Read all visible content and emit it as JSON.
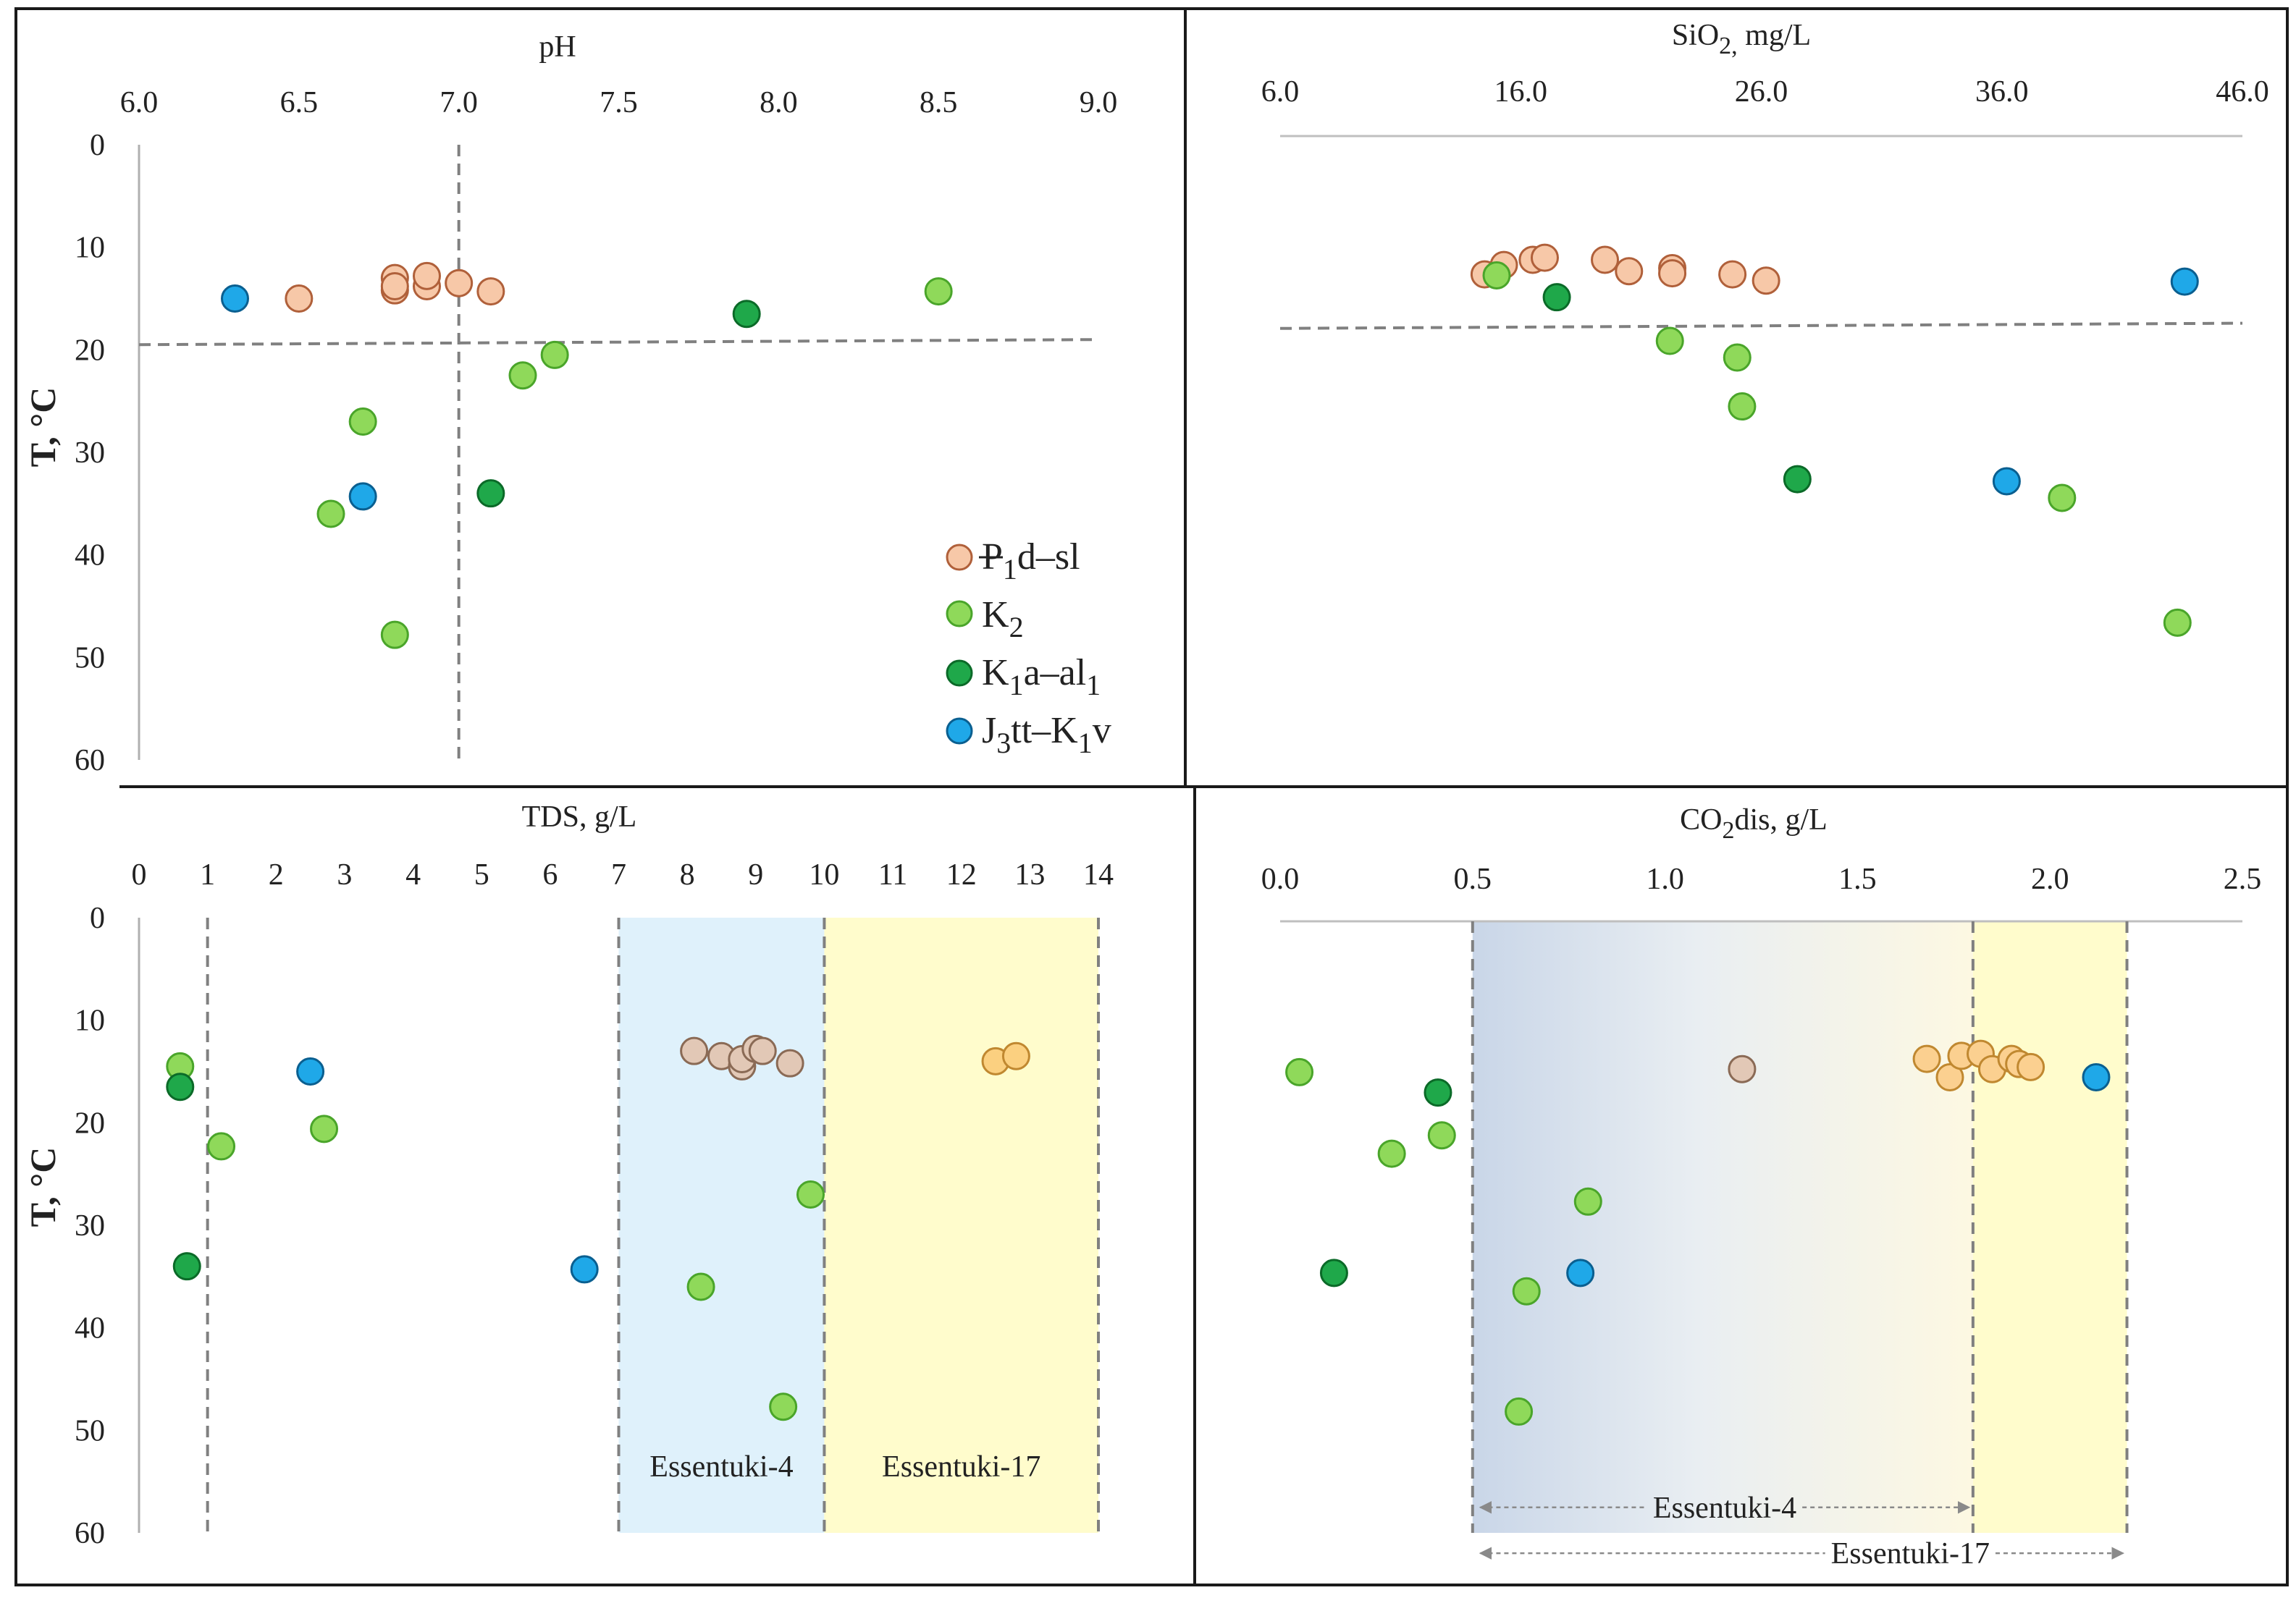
{
  "colors": {
    "Pd_sl": "#f7c8a8",
    "Pd_sl_stroke": "#b0603a",
    "K2": "#8fd95a",
    "K2_stroke": "#4aa52a",
    "K1a_al1": "#1fa84a",
    "K1a_al1_stroke": "#0b6a28",
    "J3tt_K1v": "#1fa8e8",
    "J3tt_K1v_stroke": "#0a5f90",
    "guide": "#808080",
    "region_blue": "#dff1fb",
    "region_yellow": "#fffccc",
    "axis_line": "#bfbfbf"
  },
  "legend": [
    {
      "series": "Pd_sl",
      "base": "P",
      "sub1": "1",
      "rest": "d–sl",
      "sub2": ""
    },
    {
      "series": "K2",
      "base": "K",
      "sub1": "2",
      "rest": "",
      "sub2": ""
    },
    {
      "series": "K1a_al1",
      "base": "K",
      "sub1": "1",
      "rest": "a–al",
      "sub2": "1"
    },
    {
      "series": "J3tt_K1v",
      "base": "J",
      "sub1": "3",
      "rest": "tt–K",
      "sub2": "1",
      "tail": "v"
    }
  ],
  "chart_data": [
    {
      "id": "ph",
      "type": "scatter",
      "title": "pH",
      "title_parts": {
        "base": "pH",
        "sub": "",
        "rest": ""
      },
      "xlabel": "pH",
      "ylabel": "T, °C",
      "xlim": [
        6.0,
        9.0
      ],
      "ylim": [
        0,
        60
      ],
      "y_inverted": true,
      "x_axis_position": "top",
      "xticks": [
        6.0,
        6.5,
        7.0,
        7.5,
        8.0,
        8.5,
        9.0
      ],
      "xtick_labels": [
        "6.0",
        "6.5",
        "7.0",
        "7.5",
        "8.0",
        "8.5",
        "9.0"
      ],
      "yticks": [
        0,
        10,
        20,
        30,
        40,
        50,
        60
      ],
      "ytick_labels": [
        "0",
        "10",
        "20",
        "30",
        "40",
        "50",
        "60"
      ],
      "show_y_labels": true,
      "guides": [
        {
          "kind": "vertical",
          "x": 7.0
        },
        {
          "kind": "sloped",
          "x1": 6.0,
          "y1": 19.5,
          "x2": 9.0,
          "y2": 19.0
        }
      ],
      "regions": [],
      "arrows": [],
      "series": [
        {
          "name": "Pd_sl",
          "points": [
            [
              6.5,
              15.0
            ],
            [
              6.8,
              13.0
            ],
            [
              6.8,
              14.2
            ],
            [
              6.8,
              13.8
            ],
            [
              6.9,
              13.8
            ],
            [
              6.9,
              12.8
            ],
            [
              7.0,
              13.5
            ],
            [
              7.1,
              14.3
            ]
          ]
        },
        {
          "name": "K2",
          "points": [
            [
              8.5,
              14.3
            ],
            [
              7.3,
              20.5
            ],
            [
              7.2,
              22.5
            ],
            [
              6.7,
              27.0
            ],
            [
              6.6,
              36.0
            ],
            [
              6.8,
              47.8
            ]
          ]
        },
        {
          "name": "K1a_al1",
          "points": [
            [
              7.9,
              16.5
            ],
            [
              7.1,
              34.0
            ]
          ]
        },
        {
          "name": "J3tt_K1v",
          "points": [
            [
              6.3,
              15.0
            ],
            [
              6.7,
              34.3
            ]
          ]
        }
      ]
    },
    {
      "id": "sio2",
      "type": "scatter",
      "title": "SiO2, mg/L",
      "title_parts": {
        "base": "SiO",
        "sub": "2,",
        "rest": " mg/L"
      },
      "xlabel": "SiO2, mg/L",
      "ylabel": "T, °C",
      "xlim": [
        6.0,
        46.0
      ],
      "ylim": [
        0,
        60
      ],
      "y_inverted": true,
      "x_axis_position": "top",
      "xticks": [
        6.0,
        16.0,
        26.0,
        36.0,
        46.0
      ],
      "xtick_labels": [
        "6.0",
        "16.0",
        "26.0",
        "36.0",
        "46.0"
      ],
      "yticks": [],
      "ytick_labels": [],
      "show_y_labels": false,
      "guides": [
        {
          "kind": "sloped",
          "x1": 6.0,
          "y1": 18.5,
          "x2": 46.0,
          "y2": 18.0
        }
      ],
      "regions": [],
      "arrows": [],
      "series": [
        {
          "name": "Pd_sl",
          "points": [
            [
              14.5,
              13.3
            ],
            [
              15.3,
              12.4
            ],
            [
              16.5,
              11.9
            ],
            [
              17.0,
              11.7
            ],
            [
              19.5,
              11.9
            ],
            [
              20.5,
              13.0
            ],
            [
              22.3,
              12.7
            ],
            [
              22.3,
              13.2
            ],
            [
              24.8,
              13.3
            ],
            [
              26.2,
              13.9
            ]
          ]
        },
        {
          "name": "K2",
          "points": [
            [
              15.0,
              13.4
            ],
            [
              22.2,
              19.7
            ],
            [
              25.0,
              21.3
            ],
            [
              25.2,
              26.0
            ],
            [
              38.5,
              34.8
            ],
            [
              43.3,
              46.8
            ]
          ]
        },
        {
          "name": "K1a_al1",
          "points": [
            [
              17.5,
              15.5
            ],
            [
              27.5,
              33.0
            ]
          ]
        },
        {
          "name": "J3tt_K1v",
          "points": [
            [
              43.6,
              14.0
            ],
            [
              36.2,
              33.2
            ]
          ]
        }
      ]
    },
    {
      "id": "tds",
      "type": "scatter",
      "title": "TDS, g/L",
      "title_parts": {
        "base": "TDS, g/L",
        "sub": "",
        "rest": ""
      },
      "xlabel": "TDS, g/L",
      "ylabel": "T, °C",
      "xlim": [
        0,
        14
      ],
      "ylim": [
        0,
        60
      ],
      "y_inverted": true,
      "x_axis_position": "top",
      "xticks": [
        0,
        1,
        2,
        3,
        4,
        5,
        6,
        7,
        8,
        9,
        10,
        11,
        12,
        13,
        14
      ],
      "xtick_labels": [
        "0",
        "1",
        "2",
        "3",
        "4",
        "5",
        "6",
        "7",
        "8",
        "9",
        "10",
        "11",
        "12",
        "13",
        "14"
      ],
      "yticks": [
        0,
        10,
        20,
        30,
        40,
        50,
        60
      ],
      "ytick_labels": [
        "0",
        "10",
        "20",
        "30",
        "40",
        "50",
        "60"
      ],
      "show_y_labels": true,
      "guides": [
        {
          "kind": "vertical",
          "x": 1.0
        },
        {
          "kind": "vertical",
          "x": 7.0
        },
        {
          "kind": "vertical",
          "x": 10.0
        },
        {
          "kind": "vertical",
          "x": 14.0
        }
      ],
      "regions": [
        {
          "x1": 7.0,
          "x2": 10.0,
          "fill": "region_blue",
          "label": "Essentuki-4",
          "label_y": 54.5
        },
        {
          "x1": 10.0,
          "x2": 14.0,
          "fill": "region_yellow",
          "label": "Essentuki-17",
          "label_y": 54.5
        }
      ],
      "arrows": [],
      "series": [
        {
          "name": "Pd_sl",
          "points": [
            [
              8.1,
              13.0
            ],
            [
              8.5,
              13.5
            ],
            [
              8.8,
              14.5
            ],
            [
              8.8,
              13.8
            ],
            [
              9.0,
              12.8
            ],
            [
              9.1,
              13.0
            ],
            [
              9.5,
              14.2
            ],
            [
              12.5,
              14.0
            ],
            [
              12.8,
              13.5
            ]
          ]
        },
        {
          "name": "K2",
          "points": [
            [
              0.6,
              14.5
            ],
            [
              1.2,
              22.3
            ],
            [
              2.7,
              20.6
            ],
            [
              9.8,
              27.0
            ],
            [
              8.2,
              36.0
            ],
            [
              9.4,
              47.7
            ]
          ]
        },
        {
          "name": "K1a_al1",
          "points": [
            [
              0.6,
              16.5
            ],
            [
              0.7,
              34.0
            ]
          ]
        },
        {
          "name": "J3tt_K1v",
          "points": [
            [
              2.5,
              15.0
            ],
            [
              6.5,
              34.3
            ]
          ]
        }
      ]
    },
    {
      "id": "co2",
      "type": "scatter",
      "title": "CO2dis, g/L",
      "title_parts": {
        "base": "CO",
        "sub": "2",
        "rest": "dis, g/L"
      },
      "xlabel": "CO2dis, g/L",
      "ylabel": "T, °C",
      "xlim": [
        0.0,
        2.5
      ],
      "ylim": [
        0,
        60
      ],
      "y_inverted": true,
      "x_axis_position": "top",
      "xticks": [
        0.0,
        0.5,
        1.0,
        1.5,
        2.0,
        2.5
      ],
      "xtick_labels": [
        "0.0",
        "0.5",
        "1.0",
        "1.5",
        "2.0",
        "2.5"
      ],
      "yticks": [],
      "ytick_labels": [],
      "show_y_labels": false,
      "guides": [
        {
          "kind": "vertical",
          "x": 0.5
        },
        {
          "kind": "vertical",
          "x": 1.8
        },
        {
          "kind": "vertical",
          "x": 2.2
        }
      ],
      "regions": [
        {
          "x1": 0.5,
          "x2": 1.8,
          "fill": "gradient",
          "label": "",
          "label_y": 0
        },
        {
          "x1": 1.8,
          "x2": 2.2,
          "fill": "region_yellow",
          "label": "",
          "label_y": 0
        }
      ],
      "arrows": [
        {
          "x1": 0.52,
          "x2": 1.79,
          "y": 57.5,
          "label": "Essentuki-4"
        },
        {
          "x1": 0.52,
          "x2": 2.19,
          "y": 62.0,
          "label": "Essentuki-17"
        }
      ],
      "series": [
        {
          "name": "Pd_sl",
          "points": [
            [
              1.2,
              14.5
            ],
            [
              1.68,
              13.5
            ],
            [
              1.74,
              15.3
            ],
            [
              1.77,
              13.2
            ],
            [
              1.82,
              13.0
            ],
            [
              1.85,
              14.5
            ],
            [
              1.9,
              13.5
            ],
            [
              1.92,
              14.0
            ],
            [
              1.95,
              14.3
            ]
          ]
        },
        {
          "name": "K2",
          "points": [
            [
              0.05,
              14.8
            ],
            [
              0.29,
              22.8
            ],
            [
              0.42,
              21.0
            ],
            [
              0.8,
              27.5
            ],
            [
              0.64,
              36.3
            ],
            [
              0.62,
              48.1
            ]
          ]
        },
        {
          "name": "K1a_al1",
          "points": [
            [
              0.41,
              16.8
            ],
            [
              0.14,
              34.5
            ]
          ]
        },
        {
          "name": "J3tt_K1v",
          "points": [
            [
              2.12,
              15.3
            ],
            [
              0.78,
              34.5
            ]
          ]
        }
      ]
    }
  ]
}
